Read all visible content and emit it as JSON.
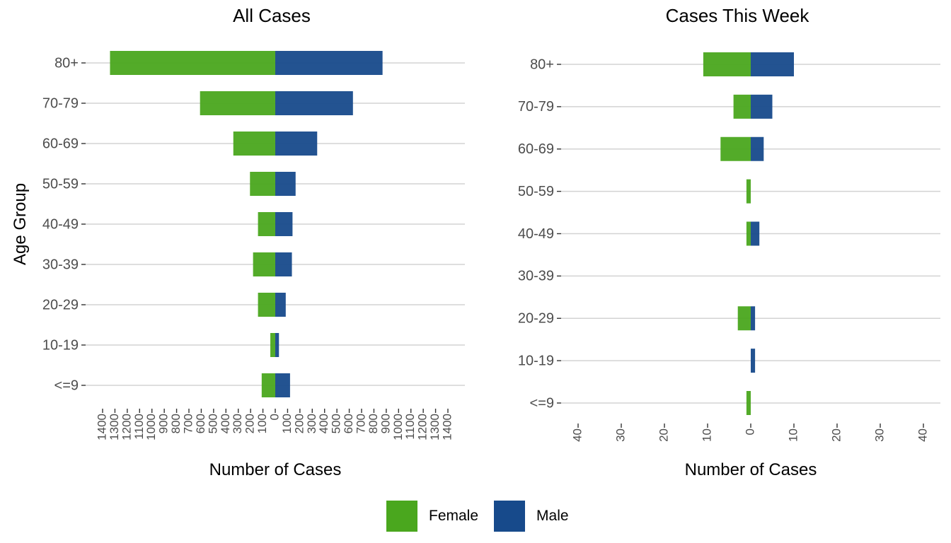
{
  "chart_data": [
    {
      "type": "bar",
      "orientation": "horizontal",
      "title": "All Cases",
      "xlabel": "Number of Cases",
      "ylabel": "Age Group",
      "categories": [
        "80+",
        "70-79",
        "60-69",
        "50-59",
        "40-49",
        "30-39",
        "20-29",
        "10-19",
        "<=9"
      ],
      "series": [
        {
          "name": "Female",
          "values": [
            1340,
            610,
            340,
            205,
            140,
            180,
            140,
            40,
            110
          ]
        },
        {
          "name": "Male",
          "values": [
            870,
            630,
            340,
            165,
            140,
            135,
            85,
            30,
            120
          ]
        }
      ],
      "xlim": [
        -1400,
        1400
      ],
      "xticks": [
        -1400,
        -1300,
        -1200,
        -1100,
        -1000,
        -900,
        -800,
        -700,
        -600,
        -500,
        -400,
        -300,
        -200,
        -100,
        0,
        100,
        200,
        300,
        400,
        500,
        600,
        700,
        800,
        900,
        1000,
        1100,
        1200,
        1300,
        1400
      ],
      "xtick_labels": [
        "1400",
        "1300",
        "1200",
        "1100",
        "1000",
        "900",
        "800",
        "700",
        "600",
        "500",
        "400",
        "300",
        "200",
        "100",
        "0",
        "100",
        "200",
        "300",
        "400",
        "500",
        "600",
        "700",
        "800",
        "900",
        "1000",
        "1100",
        "1200",
        "1300",
        "1400"
      ],
      "grid": "horizontal"
    },
    {
      "type": "bar",
      "orientation": "horizontal",
      "title": "Cases This Week",
      "xlabel": "Number of Cases",
      "ylabel": "",
      "categories": [
        "80+",
        "70-79",
        "60-69",
        "50-59",
        "40-49",
        "30-39",
        "20-29",
        "10-19",
        "<=9"
      ],
      "series": [
        {
          "name": "Female",
          "values": [
            11,
            4,
            7,
            1,
            1,
            0,
            3,
            0,
            1
          ]
        },
        {
          "name": "Male",
          "values": [
            10,
            5,
            3,
            0,
            2,
            0,
            1,
            1,
            0
          ]
        }
      ],
      "xlim": [
        -40,
        40
      ],
      "xticks": [
        -40,
        -30,
        -20,
        -10,
        0,
        10,
        20,
        30,
        40
      ],
      "xtick_labels": [
        "40",
        "30",
        "20",
        "10",
        "0",
        "10",
        "20",
        "30",
        "40"
      ],
      "grid": "horizontal"
    }
  ],
  "legend": {
    "placement": "bottom",
    "items": [
      {
        "label": "Female",
        "color": "#4aa71e"
      },
      {
        "label": "Male",
        "color": "#174a8b"
      }
    ]
  }
}
